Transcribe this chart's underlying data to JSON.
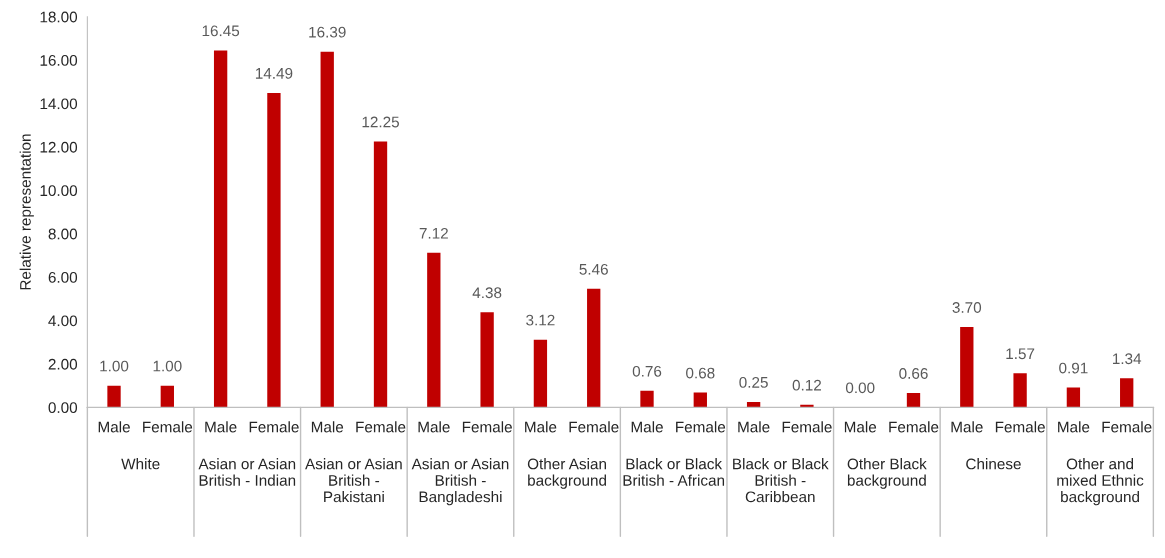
{
  "chart_data": {
    "type": "bar",
    "ylabel": "Relative representation",
    "categories": [
      "Male",
      "Female",
      "Male",
      "Female",
      "Male",
      "Female",
      "Male",
      "Female",
      "Male",
      "Female",
      "Male",
      "Female",
      "Male",
      "Female",
      "Male",
      "Female",
      "Male",
      "Female",
      "Male",
      "Female"
    ],
    "values": [
      1.0,
      1.0,
      16.45,
      14.49,
      16.39,
      12.25,
      7.12,
      4.38,
      3.12,
      5.46,
      0.76,
      0.68,
      0.25,
      0.12,
      0.0,
      0.66,
      3.7,
      1.57,
      0.91,
      1.34
    ],
    "color": "#c00000",
    "value_labels": [
      "1.00",
      "1.00",
      "16.45",
      "14.49",
      "16.39",
      "12.25",
      "7.12",
      "4.38",
      "3.12",
      "5.46",
      "0.76",
      "0.68",
      "0.25",
      "0.12",
      "0.00",
      "0.66",
      "3.70",
      "1.57",
      "0.91",
      "1.34"
    ],
    "ylim": [
      0,
      18
    ],
    "yticks": [
      {
        "value": 0,
        "label": "0.00"
      },
      {
        "value": 2,
        "label": "2.00"
      },
      {
        "value": 4,
        "label": "4.00"
      },
      {
        "value": 6,
        "label": "6.00"
      },
      {
        "value": 8,
        "label": "8.00"
      },
      {
        "value": 10,
        "label": "10.00"
      },
      {
        "value": 12,
        "label": "12.00"
      },
      {
        "value": 14,
        "label": "14.00"
      },
      {
        "value": 16,
        "label": "16.00"
      },
      {
        "value": 18,
        "label": "18.00"
      }
    ],
    "grid": false,
    "annotations": [
      "White",
      "Asian or Asian\nBritish - Indian",
      "Asian or Asian\nBritish -\nPakistani",
      "Asian or Asian\nBritish -\nBangladeshi",
      "Other Asian\nbackground",
      "Black or Black\nBritish - African",
      "Black or Black\nBritish -\nCaribbean",
      "Other Black\nbackground",
      "Chinese",
      "Other and\nmixed Ethnic\nbackground"
    ]
  }
}
